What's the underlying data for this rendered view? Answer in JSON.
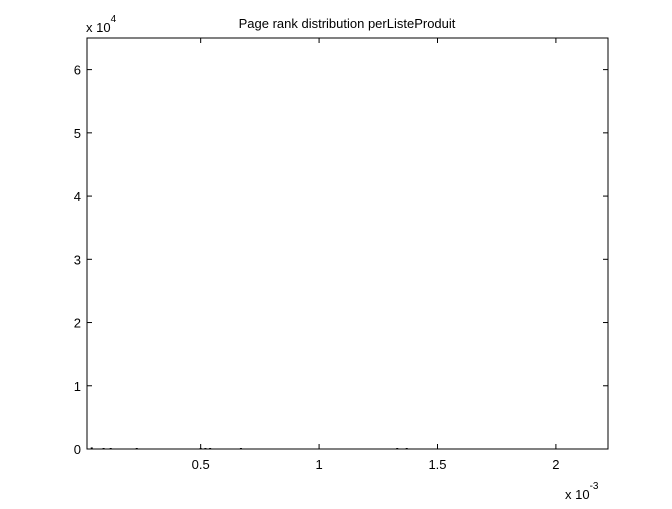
{
  "chart_data": {
    "type": "bar",
    "title": "Page rank distribution perListeProduit",
    "xlabel": "",
    "ylabel": "",
    "xlim": [
      2e-05,
      0.00222
    ],
    "ylim": [
      0,
      65000
    ],
    "x_ticks": [
      0.0005,
      0.001,
      0.0015,
      0.002
    ],
    "x_tick_labels": [
      "0.5",
      "1",
      "1.5",
      "2"
    ],
    "y_ticks": [
      0,
      10000,
      20000,
      30000,
      40000,
      50000,
      60000
    ],
    "y_tick_labels": [
      "0",
      "1",
      "2",
      "3",
      "4",
      "5",
      "6"
    ],
    "x_multiplier": {
      "base": "x 10",
      "exponent": "-3"
    },
    "y_multiplier": {
      "base": "x 10",
      "exponent": "4"
    },
    "grid": false,
    "bar_color": "#000000",
    "bars": [
      {
        "x": 4e-05,
        "y": 250
      },
      {
        "x": 9e-05,
        "y": 150
      },
      {
        "x": 0.00012,
        "y": 120
      },
      {
        "x": 0.00023,
        "y": 120
      },
      {
        "x": 0.0005,
        "y": 150
      },
      {
        "x": 0.00052,
        "y": 100
      },
      {
        "x": 0.00054,
        "y": 80
      },
      {
        "x": 0.00067,
        "y": 80
      },
      {
        "x": 0.00133,
        "y": 80
      },
      {
        "x": 0.00137,
        "y": 60
      }
    ]
  }
}
